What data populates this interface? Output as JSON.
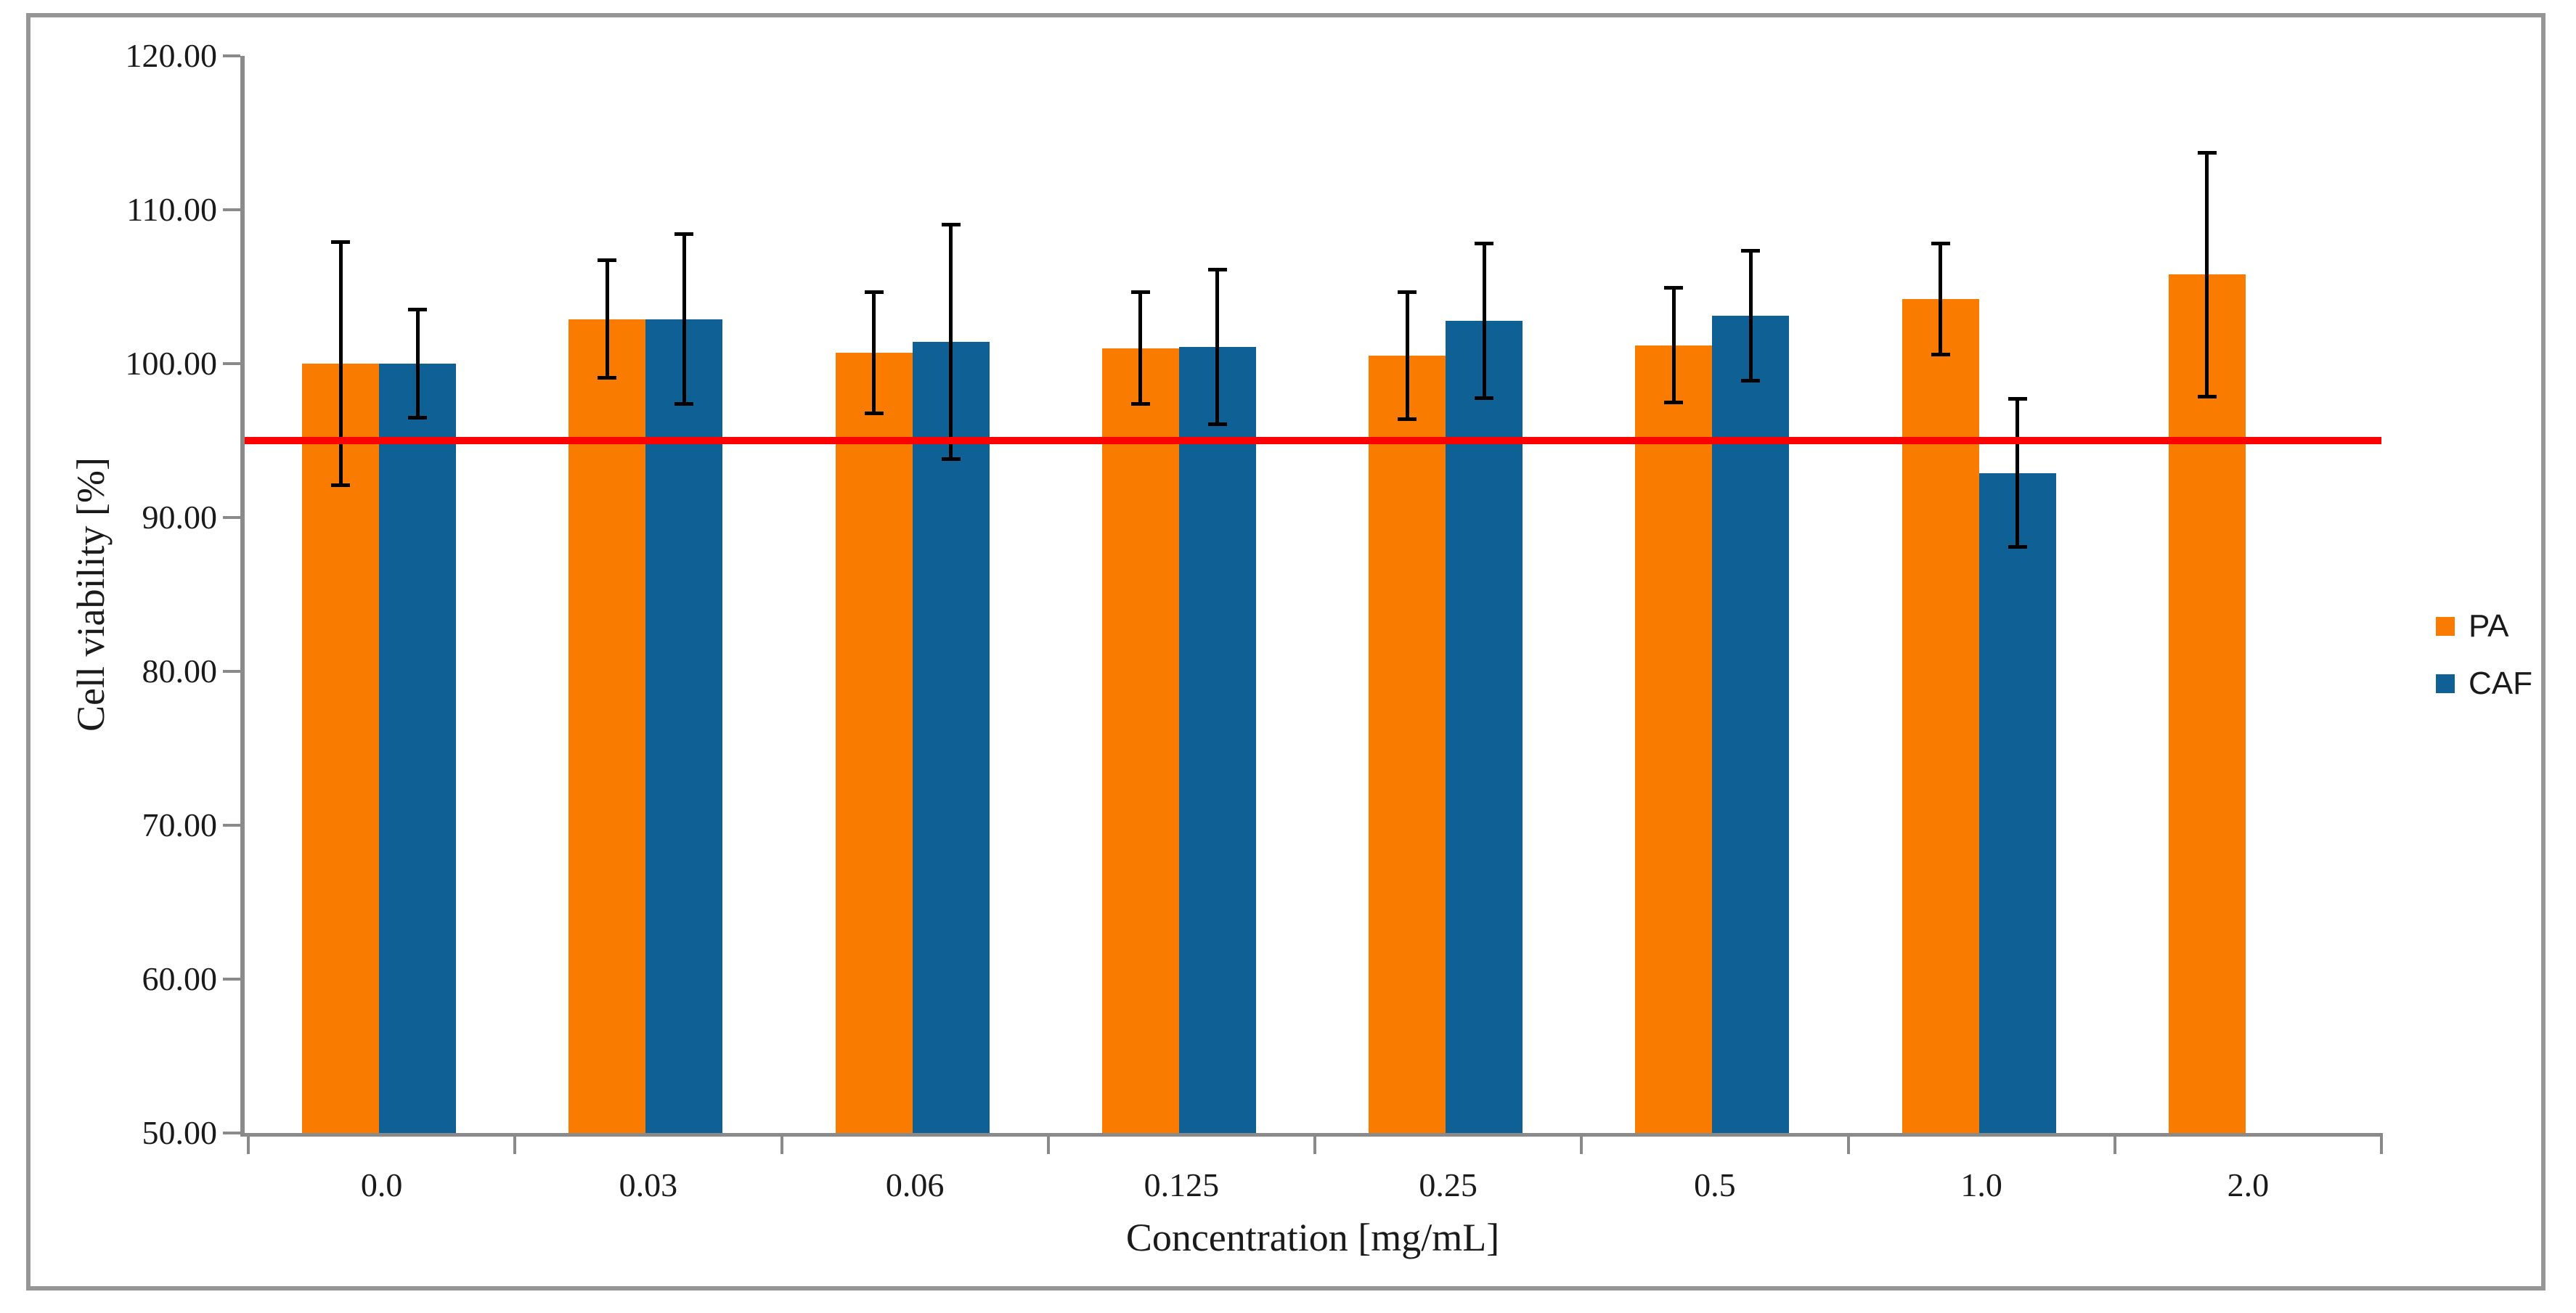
{
  "figure": {
    "background_color": "#FFFFFF",
    "border_color": "#969696"
  },
  "chart_data": {
    "type": "bar",
    "title": "",
    "xlabel": "Concentration [mg/mL]",
    "ylabel": "Cell viability [%]",
    "categories": [
      "0.0",
      "0.03",
      "0.06",
      "0.125",
      "0.25",
      "0.5",
      "1.0",
      "2.0"
    ],
    "series": [
      {
        "name": "PA",
        "color": "#F97C00",
        "values": [
          100.0,
          102.9,
          100.7,
          101.0,
          100.5,
          101.2,
          104.2,
          105.8
        ],
        "errors": [
          7.9,
          3.8,
          3.9,
          3.6,
          4.1,
          3.7,
          3.6,
          7.9
        ]
      },
      {
        "name": "CAF",
        "color": "#0F6195",
        "values": [
          100.0,
          102.9,
          101.4,
          101.1,
          102.8,
          103.1,
          92.9,
          null
        ],
        "errors": [
          3.5,
          5.5,
          7.6,
          5.0,
          5.0,
          4.2,
          4.8,
          null
        ]
      }
    ],
    "error_bar_color": "#000000",
    "y_axis": {
      "min": 50,
      "max": 120,
      "step": 10,
      "tick_labels": [
        "120.00",
        "110.00",
        "100.00",
        "90.00",
        "80.00",
        "70.00",
        "60.00",
        "50.00"
      ]
    },
    "reference_line": {
      "value": 95,
      "color": "#FF0000"
    },
    "legend": {
      "position": "right",
      "items": [
        {
          "label": "PA",
          "color": "#F97C00"
        },
        {
          "label": "CAF",
          "color": "#0F6195"
        }
      ]
    },
    "grid": false
  }
}
